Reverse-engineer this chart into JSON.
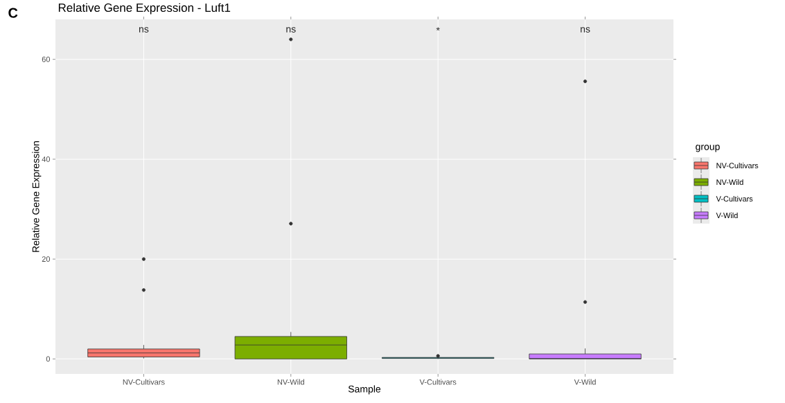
{
  "chart_data": {
    "type": "box",
    "title": "Relative Gene Expression - Luft1",
    "xlabel": "Sample",
    "ylabel": "Relative Gene Expression",
    "legend_title": "group",
    "categories": [
      "NV-Cultivars",
      "NV-Wild",
      "V-Cultivars",
      "V-Wild"
    ],
    "series": [
      {
        "name": "NV-Cultivars",
        "color": "#f8766d",
        "boxes": [
          {
            "low": 0.1,
            "q1": 0.4,
            "median": 1.2,
            "q3": 2.0,
            "high": 2.8,
            "outliers": [
              13.8,
              20.0
            ]
          },
          null,
          null,
          null
        ]
      },
      {
        "name": "NV-Wild",
        "color": "#7cae00",
        "boxes": [
          null,
          {
            "low": 0,
            "q1": 0,
            "median": 2.8,
            "q3": 4.5,
            "high": 5.4,
            "outliers": [
              27.1,
              64.0
            ]
          },
          null,
          null
        ]
      },
      {
        "name": "V-Cultivars",
        "color": "#00bfc4",
        "boxes": [
          null,
          null,
          {
            "low": 0,
            "q1": 0.1,
            "median": 0.2,
            "q3": 0.3,
            "high": 0.4,
            "outliers": [
              0.6
            ]
          },
          null
        ]
      },
      {
        "name": "V-Wild",
        "color": "#c77cff",
        "boxes": [
          null,
          null,
          null,
          {
            "low": 0,
            "q1": 0,
            "median": 0.1,
            "q3": 1.0,
            "high": 2.1,
            "outliers": [
              11.4,
              55.6
            ]
          }
        ]
      }
    ],
    "ylim": [
      -3,
      68
    ],
    "yticks": [
      0,
      20,
      40,
      60
    ],
    "grid": true,
    "legend": "right",
    "marker": "circle",
    "annotations": [
      "C",
      "ns",
      "ns",
      "*",
      "ns"
    ]
  }
}
